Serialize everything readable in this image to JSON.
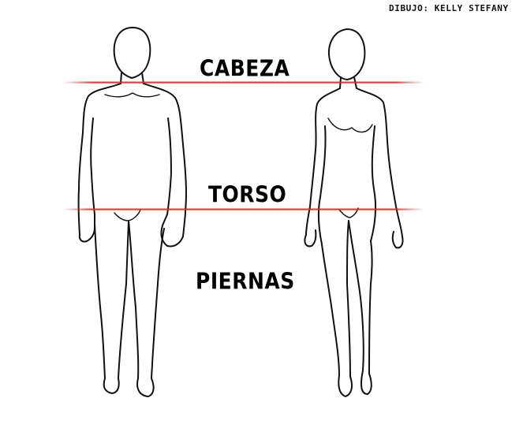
{
  "credit": "DIBUJO: KELLY STEFANY",
  "labels": {
    "head": "CABEZA",
    "torso": "TORSO",
    "legs": "PIERNAS"
  },
  "colors": {
    "divider": "#e02a1a",
    "ink": "#111111",
    "background": "#ffffff"
  }
}
